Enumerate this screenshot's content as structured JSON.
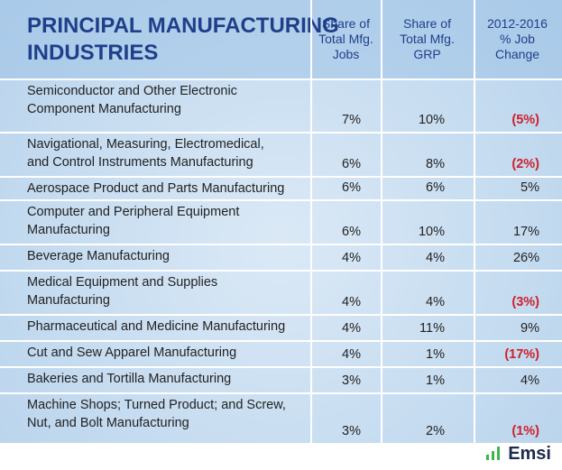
{
  "header": {
    "title": [
      "PRINCIPAL MANUFACTURING",
      "INDUSTRIES"
    ],
    "columns": [
      "Share of Total Mfg. Jobs",
      "Share of Total Mfg. GRP",
      "2012-2016 % Job Change"
    ]
  },
  "table": {
    "rows": [
      {
        "label": [
          "Semiconductor and Other Electronic",
          "Component Manufacturing"
        ],
        "jobs": "7%",
        "grp": "10%",
        "change": "(5%)"
      },
      {
        "label": [
          "Navigational, Measuring, Electromedical,",
          "and Control Instruments Manufacturing"
        ],
        "jobs": "6%",
        "grp": "8%",
        "change": "(2%)"
      },
      {
        "label": [
          "Aerospace Product and Parts Manufacturing"
        ],
        "jobs": "6%",
        "grp": "6%",
        "change": "5%"
      },
      {
        "label": [
          "Computer and Peripheral Equipment",
          "Manufacturing"
        ],
        "jobs": "6%",
        "grp": "10%",
        "change": "17%"
      },
      {
        "label": [
          "Beverage Manufacturing"
        ],
        "jobs": "4%",
        "grp": "4%",
        "change": "26%"
      },
      {
        "label": [
          "Medical Equipment and Supplies",
          "Manufacturing"
        ],
        "jobs": "4%",
        "grp": "4%",
        "change": "(3%)"
      },
      {
        "label": [
          "Pharmaceutical and Medicine Manufacturing"
        ],
        "jobs": "4%",
        "grp": "11%",
        "change": "9%"
      },
      {
        "label": [
          "Cut and Sew Apparel Manufacturing"
        ],
        "jobs": "4%",
        "grp": "1%",
        "change": "(17%)"
      },
      {
        "label": [
          "Bakeries and Tortilla Manufacturing"
        ],
        "jobs": "3%",
        "grp": "1%",
        "change": "4%"
      },
      {
        "label": [
          "Machine Shops; Turned Product; and Screw,",
          "Nut, and Bolt Manufacturing"
        ],
        "jobs": "3%",
        "grp": "2%",
        "change": "(1%)"
      }
    ]
  },
  "footer": {
    "logo": "Emsi"
  }
}
